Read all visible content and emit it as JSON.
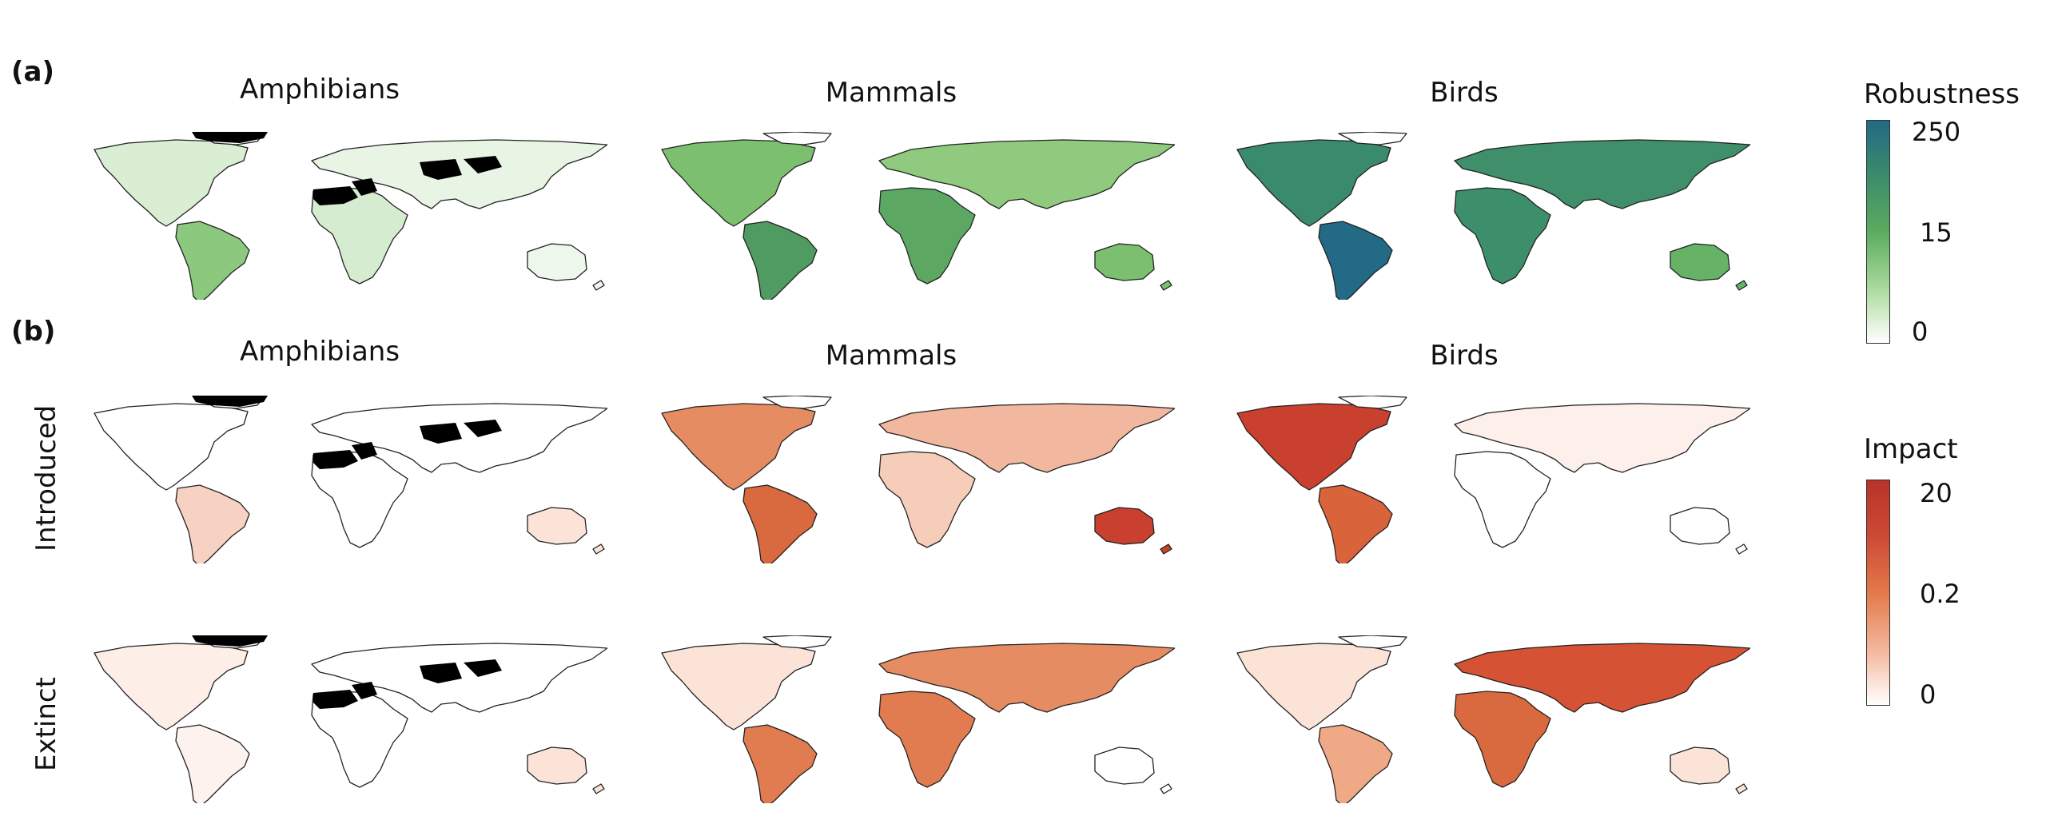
{
  "panels": {
    "a": {
      "label": "(a)"
    },
    "b": {
      "label": "(b)"
    }
  },
  "columns": {
    "a": [
      "Amphibians",
      "Mammals",
      "Birds"
    ],
    "b": [
      "Amphibians",
      "Mammals",
      "Birds"
    ]
  },
  "rows": {
    "introduced": "Introduced",
    "extinct": "Extinct"
  },
  "legends": {
    "robustness": {
      "title": "Robustness",
      "ticks": [
        "250",
        "15",
        "0"
      ],
      "colors": [
        "#ffffff",
        "#a8d99a",
        "#5bab5f",
        "#3b8c6a",
        "#226a85"
      ]
    },
    "impact": {
      "title": "Impact",
      "ticks": [
        "20",
        "0.2",
        "0"
      ],
      "colors": [
        "#ffffff",
        "#f4b59a",
        "#e3794a",
        "#cc4a35",
        "#b8332a"
      ]
    }
  },
  "map_fills": {
    "a_amphibians": {
      "americas": "#d9eed3",
      "south_america": "#8cc97e",
      "eurasia": "#e8f4e4",
      "africa": "#d6ecd0",
      "australia": "#eef7ec",
      "no_data": true
    },
    "a_mammals": {
      "americas": "#7cc06f",
      "south_america": "#4f9b62",
      "eurasia": "#8fca7e",
      "africa": "#5ca863",
      "australia": "#7cc06f",
      "no_data": false
    },
    "a_birds": {
      "americas": "#3a8a6c",
      "south_america": "#226a85",
      "eurasia": "#3f8f6a",
      "africa": "#3d8e6b",
      "australia": "#66b366",
      "no_data": false
    },
    "b_intro_amphibians": {
      "americas": "#ffffff",
      "south_america": "#f7d2c2",
      "eurasia": "#ffffff",
      "africa": "#ffffff",
      "australia": "#fbe3d8",
      "no_data": true
    },
    "b_intro_mammals": {
      "americas": "#e58c63",
      "south_america": "#d96a3f",
      "eurasia": "#f2b89f",
      "africa": "#f5cdb8",
      "australia": "#c9402e",
      "no_data": false
    },
    "b_intro_birds": {
      "americas": "#c9402e",
      "south_america": "#d9643b",
      "eurasia": "#fdf0ea",
      "africa": "#ffffff",
      "australia": "#ffffff",
      "no_data": false
    },
    "b_ext_amphibians": {
      "americas": "#fdeee7",
      "south_america": "#fdf2ed",
      "eurasia": "#ffffff",
      "africa": "#ffffff",
      "australia": "#fbe3d8",
      "no_data": true
    },
    "b_ext_mammals": {
      "americas": "#fbe3d8",
      "south_america": "#e07c4f",
      "eurasia": "#e58c63",
      "africa": "#e07c4f",
      "australia": "#ffffff",
      "no_data": false
    },
    "b_ext_birds": {
      "americas": "#fbe3d8",
      "south_america": "#ef a986",
      "eurasia": "#d55234",
      "africa": "#d96a3f",
      "australia": "#fbe3d8",
      "no_data": false
    }
  }
}
